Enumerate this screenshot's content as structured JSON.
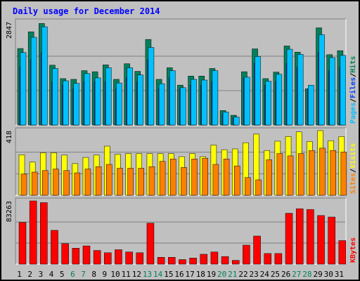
{
  "chart_data": {
    "title": "Daily usage for December 2014",
    "type": "bar",
    "grid": true,
    "colors": {
      "hits": "#00805c",
      "files": "#0040ff",
      "pages": "#00c0ff",
      "visits": "#ffff00",
      "sites": "#ff8000",
      "kbytes": "#ff0000",
      "title": "#0000ff",
      "background": "#c0c0c0",
      "panel": "#c0c0c0",
      "weekend_label": "#00805c",
      "weekday_label": "#000000"
    },
    "days": [
      "1",
      "2",
      "3",
      "4",
      "5",
      "6",
      "7",
      "8",
      "9",
      "10",
      "11",
      "12",
      "13",
      "14",
      "15",
      "16",
      "17",
      "18",
      "19",
      "20",
      "21",
      "22",
      "23",
      "24",
      "25",
      "26",
      "27",
      "28",
      "29",
      "30",
      "31"
    ],
    "weekend_days": [
      "6",
      "7",
      "13",
      "14",
      "20",
      "21",
      "27",
      "28"
    ],
    "panels": [
      {
        "id": "hits-files-pages",
        "max_label": "2847",
        "ymax": 2847,
        "legend": [
          {
            "text": "Pages",
            "color": "#00c0ff"
          },
          {
            "text": "/",
            "color": "#000000"
          },
          {
            "text": "Files",
            "color": "#0040ff"
          },
          {
            "text": "/",
            "color": "#000000"
          },
          {
            "text": "Hits",
            "color": "#00805c"
          }
        ],
        "series": [
          {
            "name": "Hits",
            "color": "#00805c",
            "values": [
              2110,
              2570,
              2800,
              1650,
              1280,
              1260,
              1500,
              1470,
              1660,
              1260,
              1690,
              1480,
              2360,
              1260,
              1580,
              1100,
              1350,
              1350,
              1560,
              400,
              270,
              1470,
              2100,
              1280,
              1460,
              2180,
              2010,
              1000,
              2680,
              1940,
              2050
            ]
          },
          {
            "name": "Files",
            "color": "#0040ff",
            "values": [
              1600,
              1800,
              2000,
              1200,
              1100,
              1000,
              1200,
              1200,
              1200,
              1000,
              1300,
              1200,
              1800,
              1000,
              1300,
              1000,
              1100,
              1100,
              1200,
              300,
              200,
              1300,
              1700,
              1100,
              1200,
              1700,
              1600,
              1000,
              2000,
              1500,
              1600
            ]
          },
          {
            "name": "Pages",
            "color": "#00c0ff",
            "values": [
              2000,
              2420,
              2710,
              1560,
              1220,
              1150,
              1420,
              1300,
              1580,
              1160,
              1580,
              1380,
              2140,
              1140,
              1500,
              1030,
              1260,
              1240,
              1500,
              360,
              220,
              1320,
              1890,
              1210,
              1400,
              2090,
              1950,
              1100,
              2490,
              1860,
              1920
            ]
          }
        ]
      },
      {
        "id": "visits-sites",
        "max_label": "418",
        "ymax": 418,
        "legend": [
          {
            "text": "Sites",
            "color": "#ff8000"
          },
          {
            "text": "/",
            "color": "#000000"
          },
          {
            "text": "Visits",
            "color": "#ffff00"
          }
        ],
        "series": [
          {
            "name": "Visits",
            "color": "#ffff00",
            "values": [
              262,
              215,
              275,
              275,
              260,
              205,
              245,
              260,
              318,
              265,
              270,
              270,
              270,
              270,
              270,
              250,
              270,
              250,
              325,
              295,
              300,
              340,
              396,
              290,
              350,
              380,
              410,
              348,
              418,
              353,
              380
            ]
          },
          {
            "name": "Sites",
            "color": "#ff8000",
            "values": [
              138,
              150,
              160,
              170,
              160,
              145,
              170,
              185,
              200,
              175,
              175,
              175,
              185,
              220,
              235,
              180,
              235,
              240,
              200,
              235,
              190,
              115,
              100,
              230,
              270,
              255,
              270,
              290,
              305,
              290,
              280
            ]
          }
        ]
      },
      {
        "id": "kbytes",
        "max_label": "83263",
        "ymax": 83263,
        "legend": [
          {
            "text": "KBytes",
            "color": "#ff0000"
          }
        ],
        "series": [
          {
            "name": "KBytes",
            "color": "#ff0000",
            "values": [
              55000,
              83263,
              81000,
              44500,
              27000,
              21000,
              24000,
              18000,
              15000,
              19000,
              16000,
              15000,
              54000,
              9000,
              9000,
              6000,
              8000,
              13000,
              16000,
              10000,
              5000,
              25000,
              37000,
              14000,
              14000,
              67000,
              73000,
              72000,
              64000,
              62000,
              31000
            ]
          }
        ]
      }
    ]
  }
}
